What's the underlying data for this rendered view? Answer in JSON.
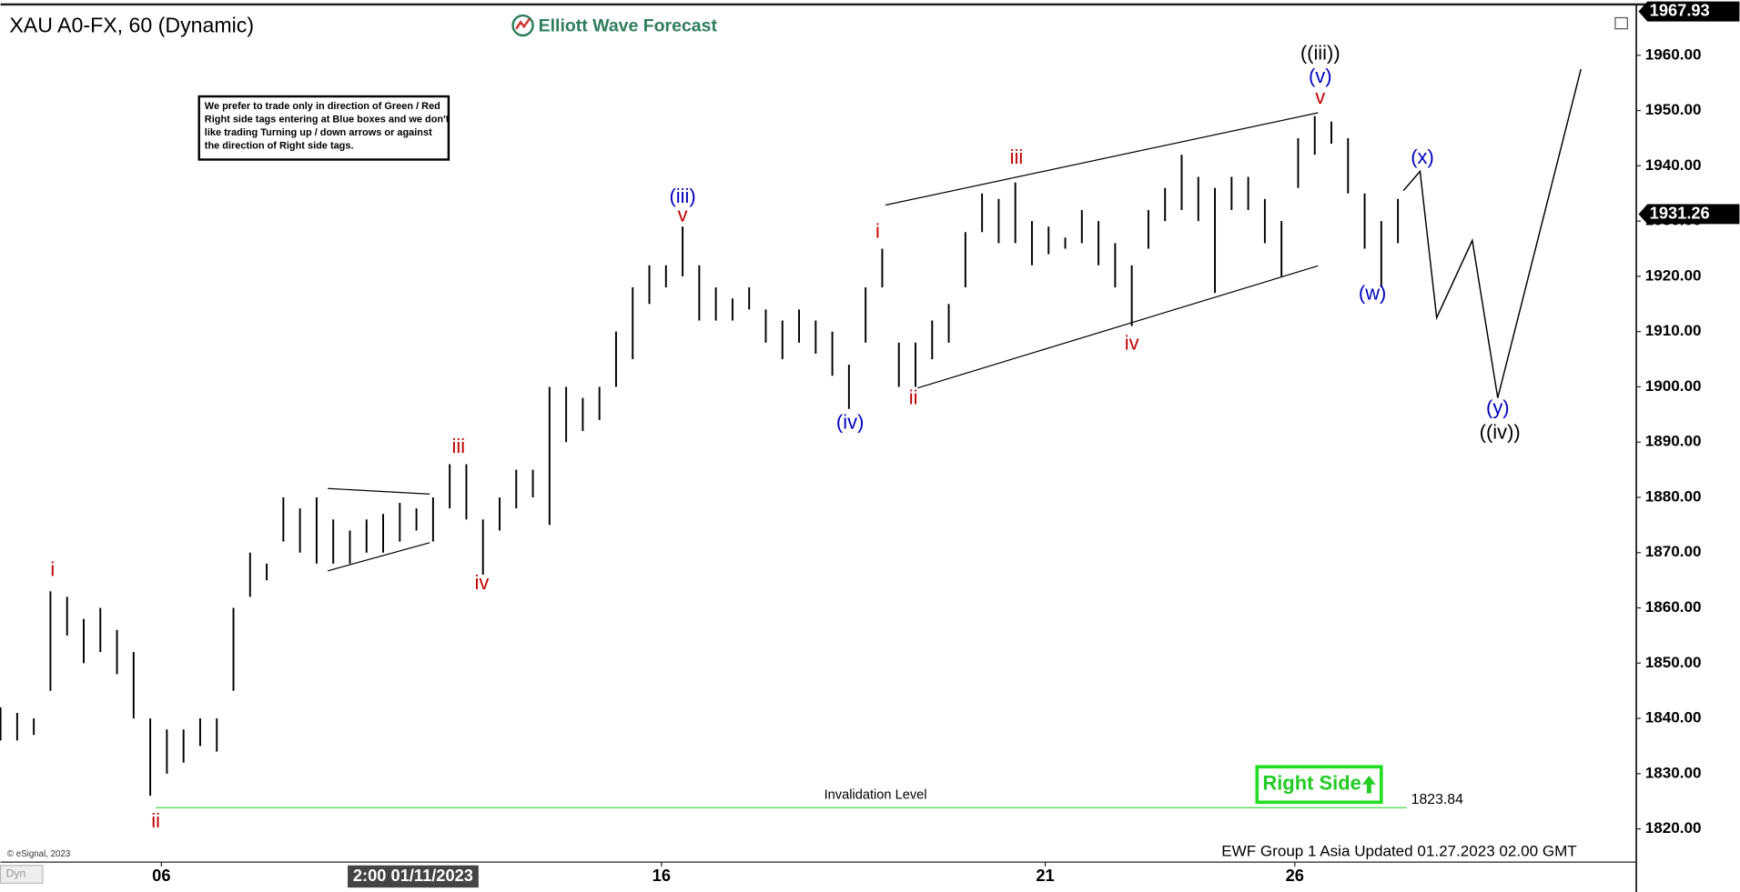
{
  "chart_data": {
    "type": "ohlc",
    "title": "XAU A0-FX, 60 (Dynamic)",
    "logo": "Elliott Wave Forecast",
    "note": [
      "We prefer to trade only in direction of Green / Red",
      "Right side tags entering at Blue boxes and we don't",
      "like trading Turning up / down arrows or against",
      "the direction of Right side tags."
    ],
    "badge": "Right Side",
    "footer": "EWF Group 1 Asia Updated 01.27.2023 02.00 GMT",
    "source": "© eSignal, 2023",
    "corner": "Dyn",
    "color": "#000000",
    "series": [
      {
        "high": [
          1842,
          1841,
          1840,
          1863,
          1862,
          1858,
          1860,
          1856,
          1852,
          1840,
          1838,
          1838,
          1840,
          1840,
          1860,
          1870,
          1868,
          1880,
          1878,
          1880,
          1876,
          1874,
          1876,
          1877,
          1879,
          1878,
          1880,
          1886,
          1886,
          1876,
          1880,
          1885,
          1885,
          1900,
          1900,
          1898,
          1900,
          1910,
          1918,
          1922,
          1922,
          1929,
          1922,
          1918,
          1916,
          1918,
          1914,
          1912,
          1914,
          1912,
          1910,
          1904,
          1918,
          1925,
          1908,
          1908,
          1912,
          1915,
          1928,
          1935,
          1934,
          1937,
          1930,
          1929,
          1927,
          1932,
          1930,
          1926,
          1922,
          1932,
          1936,
          1942,
          1938,
          1936,
          1938,
          1938,
          1934,
          1930,
          1945,
          1949,
          1948,
          1945,
          1935,
          1930,
          1934
        ],
        "low": [
          1836,
          1836,
          1837,
          1845,
          1855,
          1850,
          1852,
          1848,
          1840,
          1826,
          1830,
          1832,
          1835,
          1834,
          1845,
          1862,
          1865,
          1872,
          1870,
          1868,
          1868,
          1868,
          1870,
          1870,
          1872,
          1874,
          1872,
          1878,
          1876,
          1866,
          1874,
          1878,
          1880,
          1875,
          1890,
          1892,
          1894,
          1900,
          1905,
          1915,
          1918,
          1920,
          1912,
          1912,
          1912,
          1914,
          1908,
          1905,
          1908,
          1906,
          1902,
          1896,
          1908,
          1918,
          1900,
          1900,
          1905,
          1908,
          1918,
          1928,
          1926,
          1926,
          1922,
          1924,
          1925,
          1926,
          1922,
          1918,
          1911,
          1925,
          1930,
          1932,
          1930,
          1917,
          1932,
          1932,
          1926,
          1920,
          1936,
          1942,
          1944,
          1935,
          1925,
          1918,
          1926
        ]
      }
    ],
    "projection": {
      "x": [
        84.33,
        85.33,
        86.33,
        88.47,
        90,
        95
      ],
      "y": [
        1935.5,
        1939,
        1912.5,
        1926.5,
        1898,
        1957.5
      ]
    },
    "trendlines": [
      {
        "x": [
          53.2,
          79.2
        ],
        "y": [
          1932.9,
          1949.6
        ]
      },
      {
        "x": [
          55.13,
          79.2
        ],
        "y": [
          1899.8,
          1921.9
        ]
      },
      {
        "x": [
          19.67,
          25.8
        ],
        "y": [
          1881.6,
          1880.6
        ]
      },
      {
        "x": [
          19.67,
          25.8
        ],
        "y": [
          1866.7,
          1871.8
        ]
      }
    ],
    "invalidation": {
      "label": "Invalidation Level",
      "value": 1823.84,
      "x": [
        9.33,
        84.53
      ]
    },
    "price_labels": [
      1967.93,
      1931.26
    ],
    "annotations": [
      {
        "text": "i",
        "x": 3.13,
        "y": 1866.7,
        "color": "#c00000"
      },
      {
        "text": "ii",
        "x": 9.33,
        "y": 1821.2,
        "color": "#c00000"
      },
      {
        "text": "iii",
        "x": 27.53,
        "y": 1889.0,
        "color": "#c00000"
      },
      {
        "text": "iv",
        "x": 28.93,
        "y": 1864.3,
        "color": "#c00000"
      },
      {
        "text": "(iii)",
        "x": 41,
        "y": 1934.3,
        "color": "#0000c0"
      },
      {
        "text": "v",
        "x": 41,
        "y": 1930.9,
        "color": "#c00000"
      },
      {
        "text": "(iv)",
        "x": 51.07,
        "y": 1893.4,
        "color": "#0000c0"
      },
      {
        "text": "i",
        "x": 52.73,
        "y": 1927.9,
        "color": "#c00000"
      },
      {
        "text": "ii",
        "x": 54.87,
        "y": 1897.8,
        "color": "#c00000"
      },
      {
        "text": "iii",
        "x": 61.07,
        "y": 1941.3,
        "color": "#c00000"
      },
      {
        "text": "iv",
        "x": 68,
        "y": 1907.7,
        "color": "#c00000"
      },
      {
        "text": "((iii))",
        "x": 79.33,
        "y": 1960.2,
        "color": "#000000"
      },
      {
        "text": "(v)",
        "x": 79.33,
        "y": 1956,
        "color": "#0000c0"
      },
      {
        "text": "v",
        "x": 79.33,
        "y": 1952.2,
        "color": "#c00000"
      },
      {
        "text": "(x)",
        "x": 85.47,
        "y": 1941.3,
        "color": "#0000c0"
      },
      {
        "text": "(w)",
        "x": 82.47,
        "y": 1916.7,
        "color": "#0000c0"
      },
      {
        "text": "(y)",
        "x": 90,
        "y": 1896,
        "color": "#0000c0"
      },
      {
        "text": "((iv))",
        "x": 90.13,
        "y": 1891.6,
        "color": "#000000"
      }
    ],
    "xlim": [
      0,
      98.33
    ],
    "xticks": [
      {
        "value": 9.67,
        "label": "06"
      },
      {
        "value": 39.73,
        "label": "16"
      },
      {
        "value": 62.8,
        "label": "21"
      },
      {
        "value": 77.8,
        "label": "26"
      }
    ],
    "crosshair": {
      "value": 24.8,
      "label": "2:00 01/11/2023"
    },
    "ylim": [
      1814,
      1968.4
    ],
    "yticks": [
      {
        "value": 1820,
        "label": "1820.00"
      },
      {
        "value": 1830,
        "label": "1830.00"
      },
      {
        "value": 1840,
        "label": "1840.00"
      },
      {
        "value": 1850,
        "label": "1850.00"
      },
      {
        "value": 1860,
        "label": "1860.00"
      },
      {
        "value": 1870,
        "label": "1870.00"
      },
      {
        "value": 1880,
        "label": "1880.00"
      },
      {
        "value": 1890,
        "label": "1890.00"
      },
      {
        "value": 1900,
        "label": "1900.00"
      },
      {
        "value": 1910,
        "label": "1910.00"
      },
      {
        "value": 1920,
        "label": "1920.00"
      },
      {
        "value": 1930,
        "label": "1930.00"
      },
      {
        "value": 1940,
        "label": "1940.00"
      },
      {
        "value": 1950,
        "label": "1950.00"
      },
      {
        "value": 1960,
        "label": "1960.00"
      }
    ],
    "grid": false
  }
}
